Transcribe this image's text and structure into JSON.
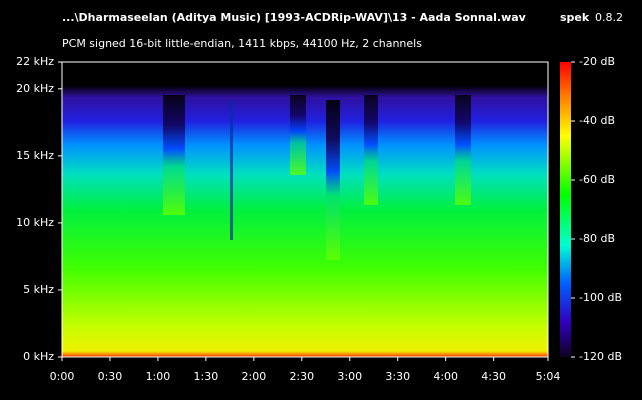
{
  "chart_data": {
    "type": "spectrogram",
    "title": "...\\Dharmaseelan (Aditya Music) [1993-ACDRip-WAV]\\13 - Aada Sonnal.wav",
    "app_name": "spek",
    "app_version": "0.8.2",
    "subtitle": "PCM signed 16-bit little-endian, 1411 kbps, 44100 Hz, 2 channels",
    "xlim": [
      0,
      304
    ],
    "xticks": [
      {
        "value": 0,
        "label": "0:00"
      },
      {
        "value": 30,
        "label": "0:30"
      },
      {
        "value": 60,
        "label": "1:00"
      },
      {
        "value": 90,
        "label": "1:30"
      },
      {
        "value": 120,
        "label": "2:00"
      },
      {
        "value": 150,
        "label": "2:30"
      },
      {
        "value": 180,
        "label": "3:00"
      },
      {
        "value": 210,
        "label": "3:30"
      },
      {
        "value": 240,
        "label": "4:00"
      },
      {
        "value": 270,
        "label": "4:30"
      },
      {
        "value": 304,
        "label": "5:04"
      }
    ],
    "ylim": [
      0,
      22
    ],
    "yticks": [
      {
        "value": 0,
        "label": "0 kHz"
      },
      {
        "value": 5,
        "label": "5 kHz"
      },
      {
        "value": 10,
        "label": "10 kHz"
      },
      {
        "value": 15,
        "label": "15 kHz"
      },
      {
        "value": 20,
        "label": "20 kHz"
      },
      {
        "value": 22,
        "label": "22 kHz"
      }
    ],
    "clim": [
      -120,
      -20
    ],
    "cticks": [
      {
        "value": -20,
        "label": "-20 dB"
      },
      {
        "value": -40,
        "label": "-40 dB"
      },
      {
        "value": -60,
        "label": "-60 dB"
      },
      {
        "value": -80,
        "label": "-80 dB"
      },
      {
        "value": -100,
        "label": "-100 dB"
      },
      {
        "value": -120,
        "label": "-120 dB"
      }
    ]
  }
}
